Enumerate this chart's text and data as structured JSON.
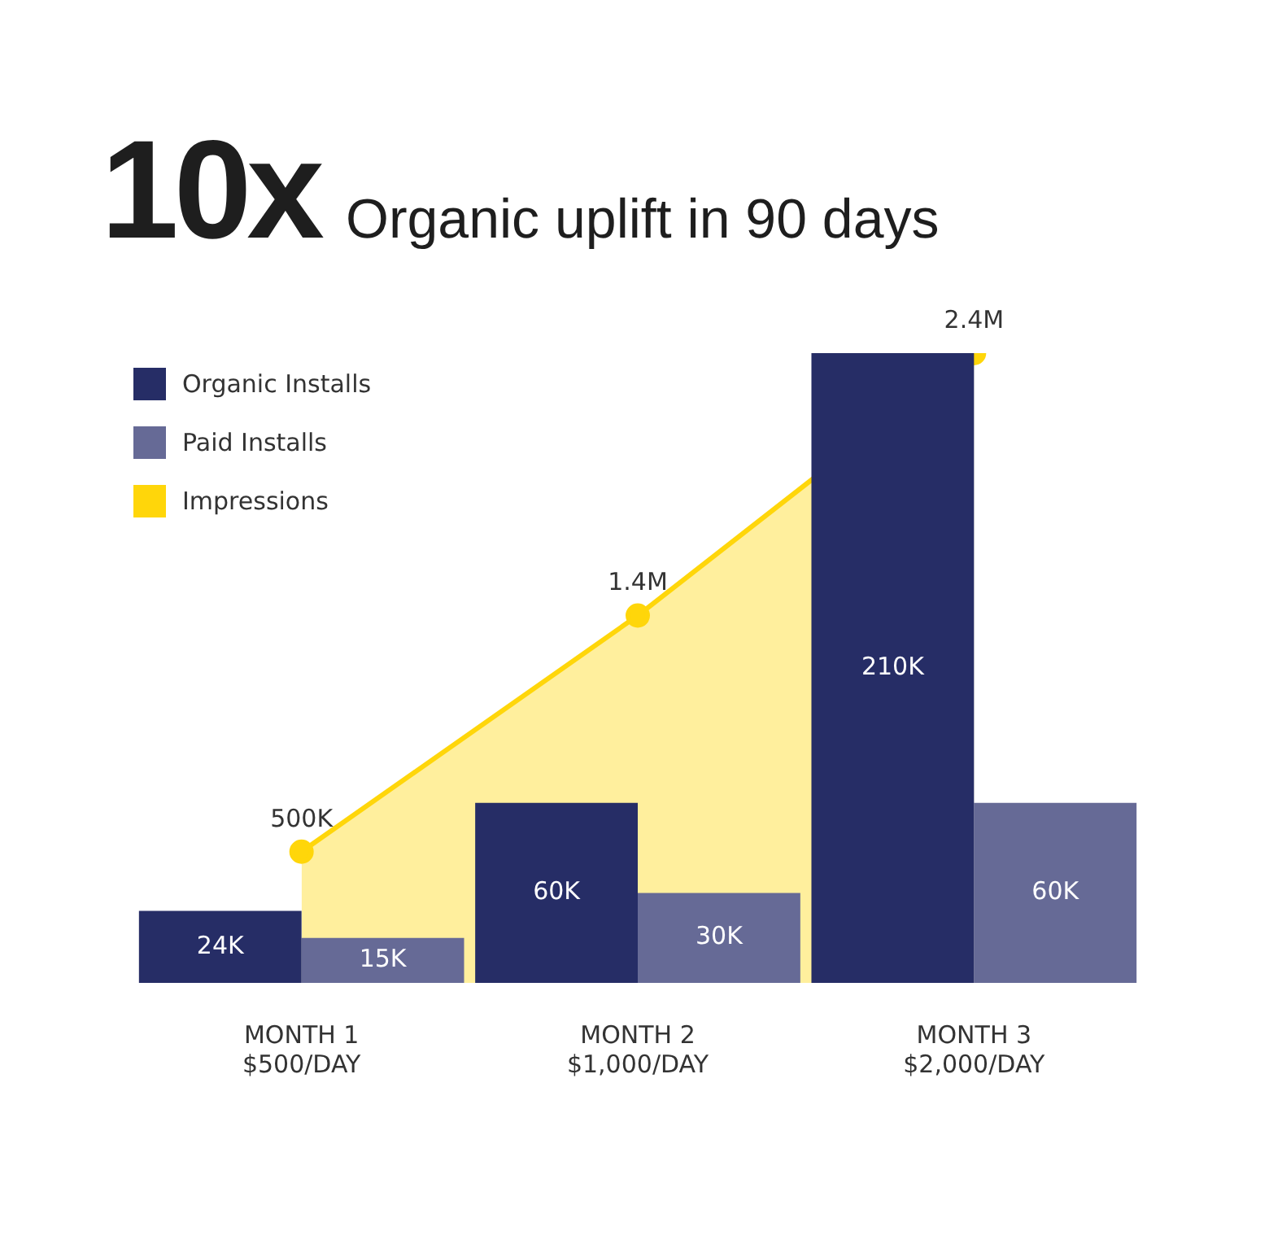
{
  "chart_data": {
    "type": "bar",
    "title": "10x",
    "subtitle": "Organic uplift in 90 days",
    "categories": [
      "MONTH 1\n$500/DAY",
      "MONTH 2\n$1,000/DAY",
      "MONTH 3\n$2,000/DAY"
    ],
    "series": [
      {
        "name": "Organic Installs",
        "color": "#262d66",
        "values": [
          24000,
          60000,
          210000
        ],
        "value_labels": [
          "24K",
          "60K",
          "210K"
        ]
      },
      {
        "name": "Paid Installs",
        "color": "#666a96",
        "values": [
          15000,
          30000,
          60000
        ],
        "value_labels": [
          "15K",
          "30K",
          "60K"
        ]
      },
      {
        "name": "Impressions",
        "type": "area",
        "axis": "y2",
        "color": "#ffd60a",
        "values": [
          500000,
          1400000,
          2400000
        ],
        "value_labels": [
          "500K",
          "1.4M",
          "2.4M"
        ]
      }
    ],
    "legend": "top left",
    "tick_labels": "x",
    "marker": "circle"
  }
}
